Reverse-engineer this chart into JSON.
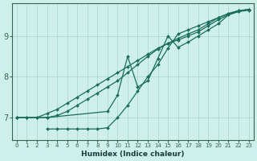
{
  "xlabel": "Humidex (Indice chaleur)",
  "ylabel": "",
  "bg_color": "#cff0ea",
  "grid_color": "#b0ddd8",
  "line_color": "#1a6e5e",
  "xlim": [
    -0.5,
    23.5
  ],
  "ylim": [
    6.45,
    9.8
  ],
  "yticks": [
    7,
    8,
    9
  ],
  "xticks": [
    0,
    1,
    2,
    3,
    4,
    5,
    6,
    7,
    8,
    9,
    10,
    11,
    12,
    13,
    14,
    15,
    16,
    17,
    18,
    19,
    20,
    21,
    22,
    23
  ],
  "lines": [
    {
      "x": [
        0,
        1,
        2,
        3,
        4,
        5,
        6,
        7,
        8,
        9,
        10,
        11,
        12,
        13,
        14,
        15,
        16,
        17,
        18,
        19,
        20,
        21,
        22,
        23
      ],
      "y": [
        7.0,
        7.0,
        7.0,
        7.1,
        7.2,
        7.35,
        7.5,
        7.65,
        7.8,
        7.95,
        8.1,
        8.25,
        8.4,
        8.55,
        8.7,
        8.82,
        8.94,
        9.05,
        9.15,
        9.3,
        9.45,
        9.55,
        9.62,
        9.65
      ]
    },
    {
      "x": [
        0,
        1,
        2,
        3,
        4,
        5,
        6,
        7,
        8,
        9,
        10,
        11,
        12,
        13,
        14,
        15,
        16,
        17,
        18,
        19,
        20,
        21,
        22,
        23
      ],
      "y": [
        7.0,
        7.0,
        7.0,
        7.0,
        7.05,
        7.15,
        7.3,
        7.45,
        7.6,
        7.75,
        7.9,
        8.1,
        8.3,
        8.5,
        8.68,
        8.82,
        8.9,
        9.0,
        9.1,
        9.25,
        9.4,
        9.52,
        9.6,
        9.63
      ]
    },
    {
      "x": [
        3,
        4,
        5,
        6,
        7,
        8,
        9,
        10,
        11,
        12,
        13,
        14,
        15,
        16,
        17,
        18,
        19,
        20,
        21,
        22,
        23
      ],
      "y": [
        6.72,
        6.72,
        6.72,
        6.72,
        6.72,
        6.72,
        6.75,
        7.0,
        7.3,
        7.65,
        8.0,
        8.3,
        8.7,
        9.05,
        9.15,
        9.25,
        9.35,
        9.45,
        9.55,
        9.62,
        9.65
      ]
    },
    {
      "x": [
        0,
        3,
        9,
        10,
        11,
        12,
        13,
        14,
        15,
        16,
        17,
        18,
        19,
        20,
        21,
        22,
        23
      ],
      "y": [
        7.0,
        7.0,
        7.15,
        7.55,
        8.5,
        7.75,
        7.9,
        8.45,
        9.0,
        8.72,
        8.85,
        9.0,
        9.15,
        9.3,
        9.52,
        9.6,
        9.65
      ]
    }
  ]
}
